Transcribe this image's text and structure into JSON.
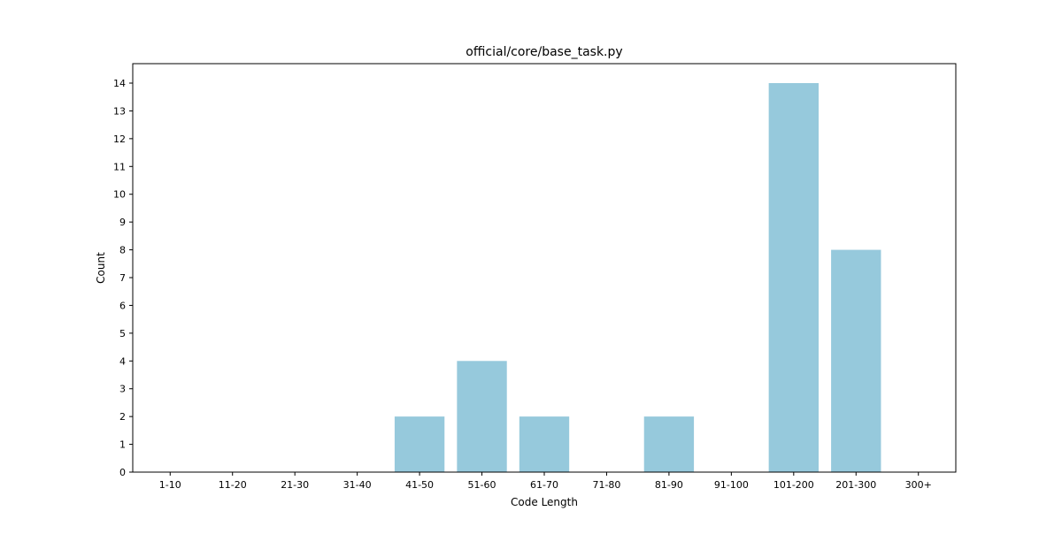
{
  "chart_data": {
    "type": "bar",
    "title": "official/core/base_task.py",
    "xlabel": "Code Length",
    "ylabel": "Count",
    "categories": [
      "1-10",
      "11-20",
      "21-30",
      "31-40",
      "41-50",
      "51-60",
      "61-70",
      "71-80",
      "81-90",
      "91-100",
      "101-200",
      "201-300",
      "300+"
    ],
    "values": [
      0,
      0,
      0,
      0,
      2,
      4,
      2,
      0,
      2,
      0,
      14,
      8,
      0
    ],
    "ylim": [
      0,
      14.7
    ],
    "yticks": [
      "0",
      "1",
      "2",
      "3",
      "4",
      "5",
      "6",
      "7",
      "8",
      "9",
      "10",
      "11",
      "12",
      "13",
      "14"
    ],
    "bar_color": "#96c9dc",
    "grid": false,
    "legend": "none"
  }
}
